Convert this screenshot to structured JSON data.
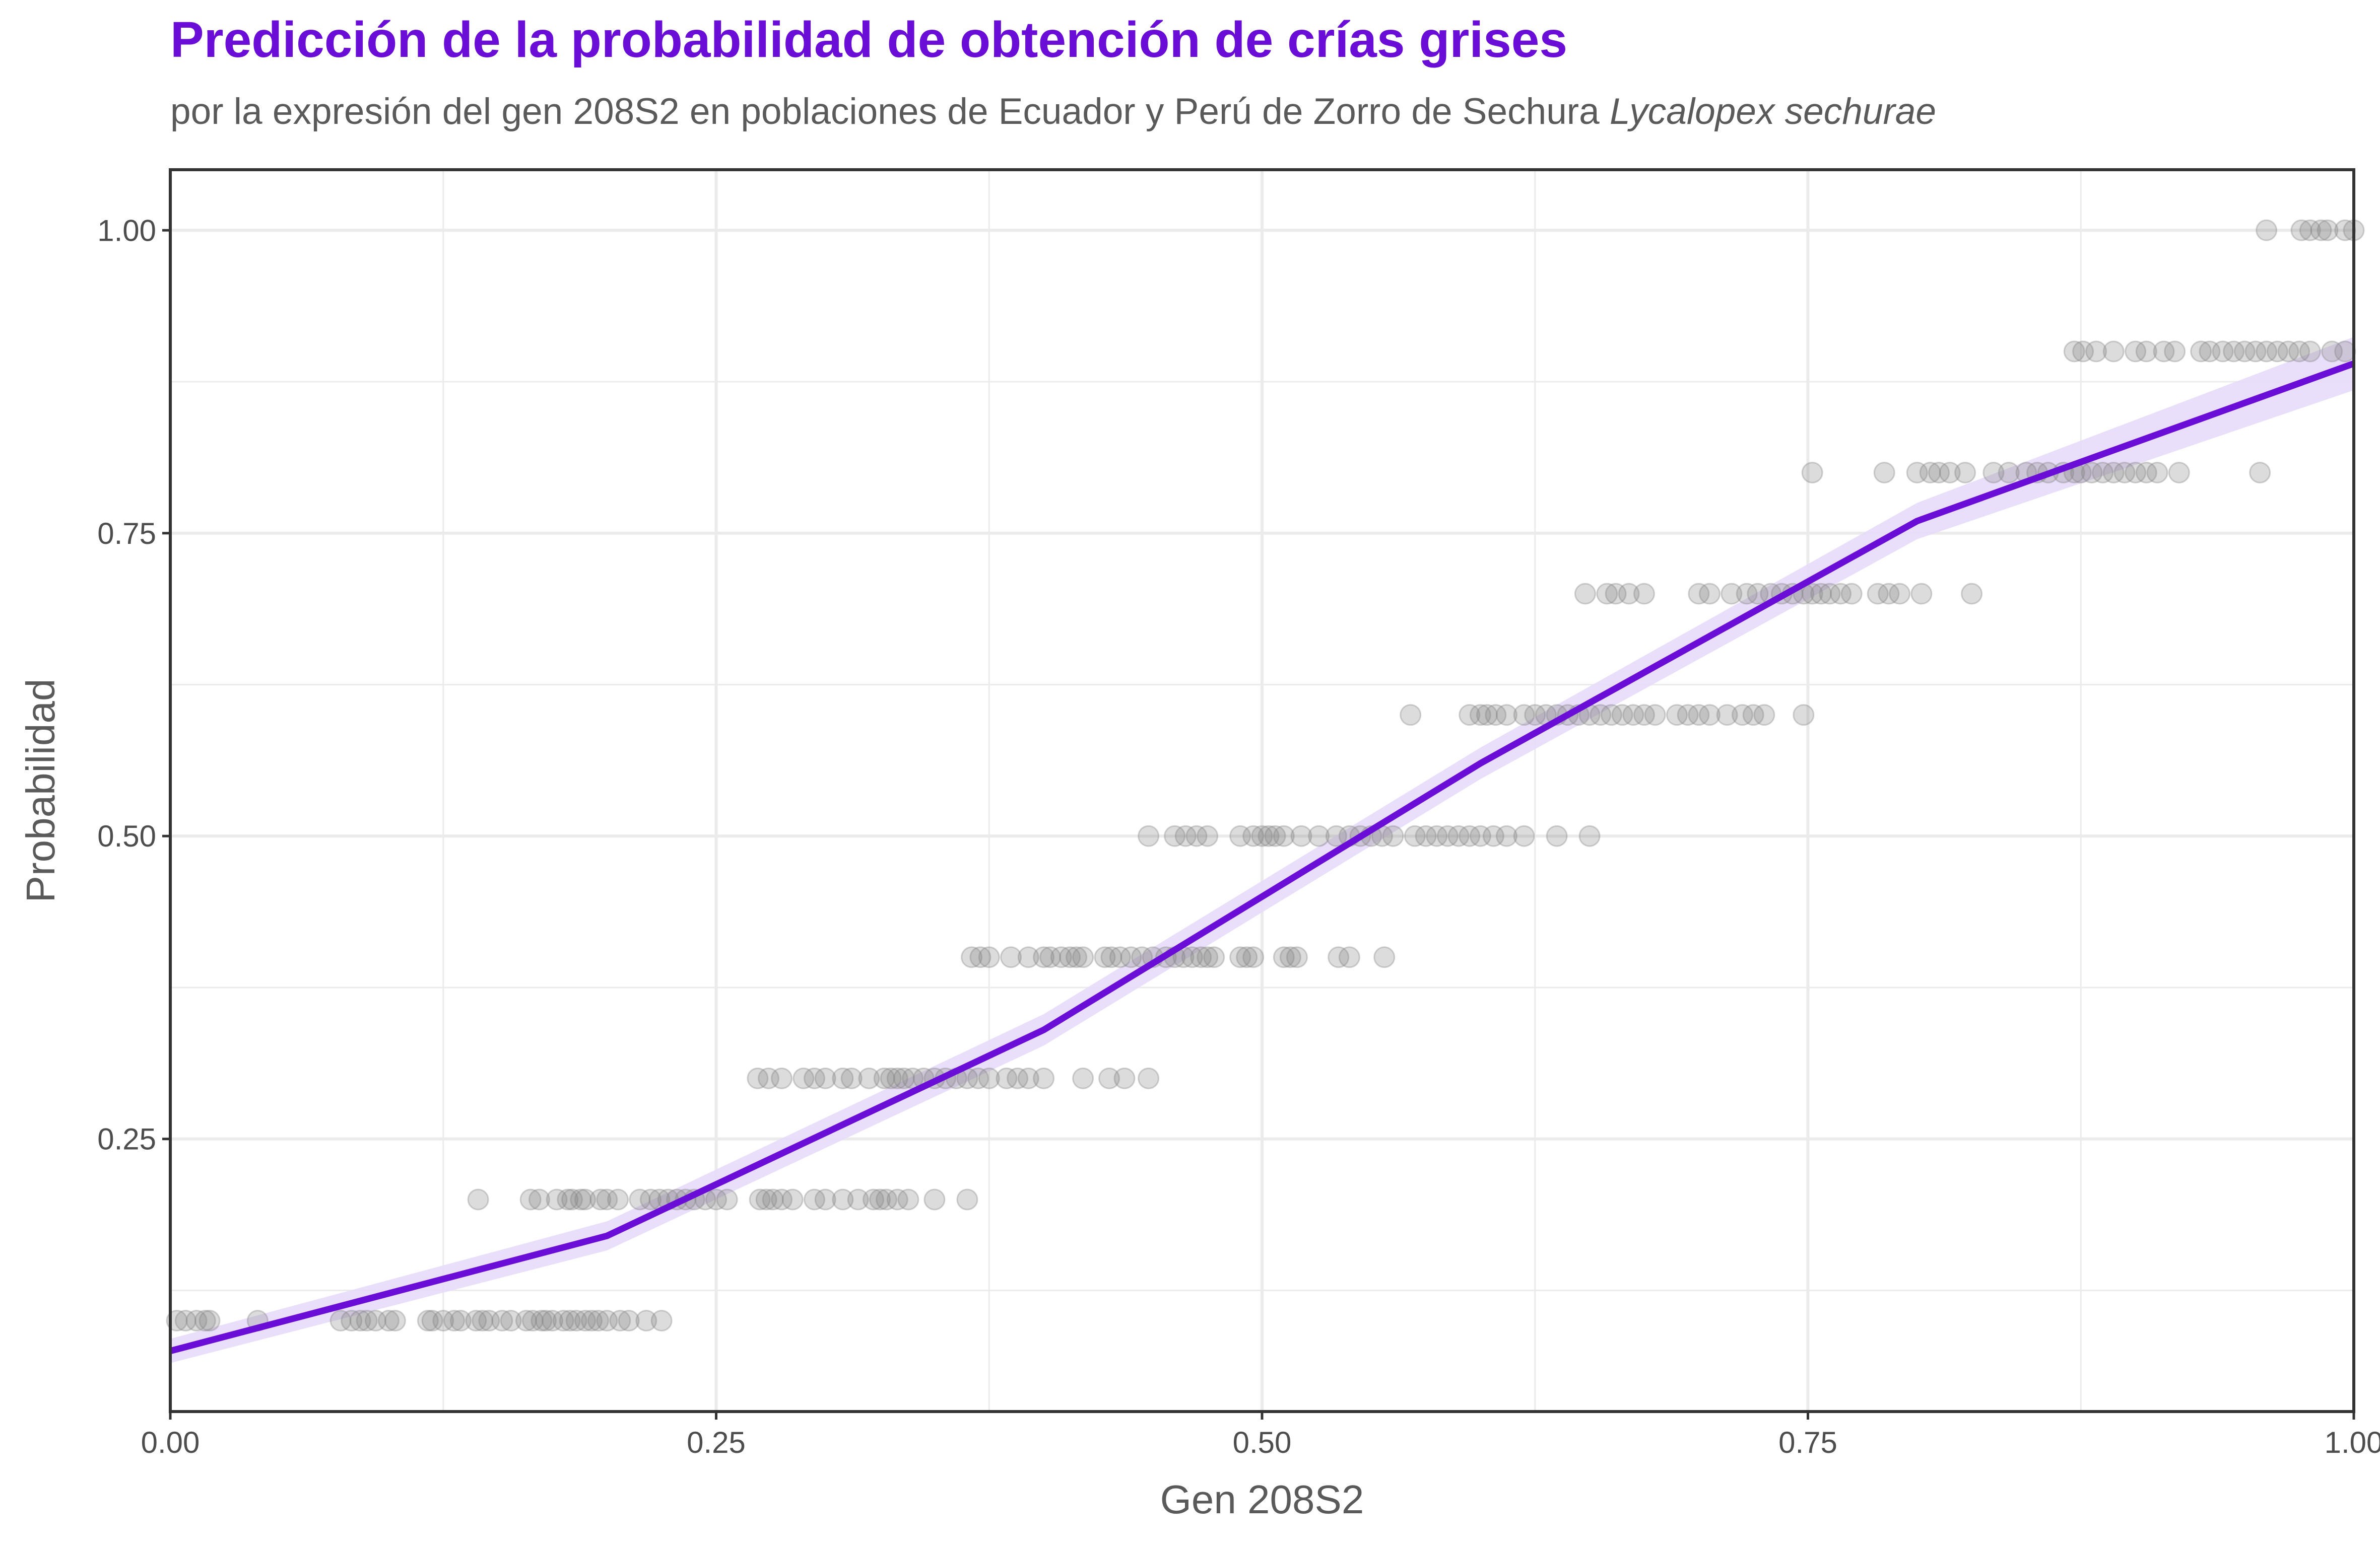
{
  "title": "Predicción de la probabilidad de obtención de crías grises",
  "subtitle_prefix": "por la expresión del gen 208S2 en poblaciones de Ecuador y Perú de Zorro de Sechura ",
  "subtitle_species": "Lycalopex sechurae",
  "colors": {
    "accent": "#6a0dd6",
    "ribbon": "#e8dcfa",
    "points": "#808080",
    "grid": "#ebebeb",
    "panel_border": "#333333"
  },
  "chart_data": {
    "type": "scatter",
    "title": "Predicción de la probabilidad de obtención de crías grises",
    "xlabel": "Gen 208S2",
    "ylabel": "Probabilidad",
    "xlim": [
      0,
      1
    ],
    "ylim": [
      0.025,
      1.05
    ],
    "grid": true,
    "x_ticks": [
      0.0,
      0.25,
      0.5,
      0.75,
      1.0
    ],
    "x_tick_labels": [
      "0.00",
      "0.25",
      "0.50",
      "0.75",
      "1.00"
    ],
    "y_ticks": [
      0.25,
      0.5,
      0.75,
      1.0
    ],
    "y_tick_labels": [
      "0.25",
      "0.50",
      "0.75",
      "1.00"
    ],
    "series": [
      {
        "kind": "points",
        "points_by_level": [
          {
            "y": 0.1,
            "x": [
              0.003,
              0.007,
              0.012,
              0.016,
              0.018,
              0.04,
              0.078,
              0.083,
              0.087,
              0.09,
              0.094,
              0.1,
              0.103,
              0.118,
              0.12,
              0.125,
              0.13,
              0.133,
              0.14,
              0.143,
              0.146,
              0.152,
              0.156,
              0.163,
              0.166,
              0.17,
              0.172,
              0.175,
              0.18,
              0.183,
              0.186,
              0.19,
              0.193,
              0.196,
              0.2,
              0.206,
              0.21,
              0.218,
              0.225
            ]
          },
          {
            "y": 0.2,
            "x": [
              0.141,
              0.165,
              0.169,
              0.177,
              0.182,
              0.184,
              0.188,
              0.19,
              0.197,
              0.2,
              0.205,
              0.215,
              0.22,
              0.224,
              0.228,
              0.232,
              0.236,
              0.24,
              0.245,
              0.25,
              0.255,
              0.27,
              0.273,
              0.276,
              0.28,
              0.285,
              0.295,
              0.3,
              0.308,
              0.315,
              0.322,
              0.325,
              0.328,
              0.333,
              0.338,
              0.35,
              0.365
            ]
          },
          {
            "y": 0.3,
            "x": [
              0.269,
              0.274,
              0.28,
              0.29,
              0.295,
              0.3,
              0.308,
              0.312,
              0.32,
              0.327,
              0.33,
              0.333,
              0.336,
              0.34,
              0.345,
              0.35,
              0.355,
              0.36,
              0.365,
              0.37,
              0.375,
              0.383,
              0.388,
              0.393,
              0.4,
              0.418,
              0.43,
              0.437,
              0.448
            ]
          },
          {
            "y": 0.4,
            "x": [
              0.367,
              0.371,
              0.375,
              0.385,
              0.393,
              0.4,
              0.403,
              0.408,
              0.412,
              0.415,
              0.418,
              0.428,
              0.431,
              0.435,
              0.44,
              0.445,
              0.45,
              0.456,
              0.46,
              0.464,
              0.468,
              0.472,
              0.475,
              0.478,
              0.49,
              0.493,
              0.496,
              0.51,
              0.513,
              0.516,
              0.535,
              0.54,
              0.556
            ]
          },
          {
            "y": 0.5,
            "x": [
              0.448,
              0.46,
              0.465,
              0.47,
              0.475,
              0.49,
              0.496,
              0.5,
              0.503,
              0.506,
              0.51,
              0.518,
              0.526,
              0.534,
              0.54,
              0.545,
              0.55,
              0.555,
              0.56,
              0.57,
              0.575,
              0.58,
              0.585,
              0.59,
              0.595,
              0.6,
              0.606,
              0.612,
              0.62,
              0.635,
              0.65
            ]
          },
          {
            "y": 0.6,
            "x": [
              0.568,
              0.595,
              0.6,
              0.603,
              0.607,
              0.612,
              0.62,
              0.625,
              0.63,
              0.635,
              0.64,
              0.645,
              0.65,
              0.655,
              0.66,
              0.665,
              0.67,
              0.675,
              0.68,
              0.69,
              0.695,
              0.7,
              0.705,
              0.713,
              0.72,
              0.725,
              0.73,
              0.748
            ]
          },
          {
            "y": 0.7,
            "x": [
              0.648,
              0.658,
              0.662,
              0.668,
              0.675,
              0.7,
              0.705,
              0.715,
              0.722,
              0.727,
              0.733,
              0.738,
              0.743,
              0.748,
              0.752,
              0.756,
              0.76,
              0.765,
              0.77,
              0.782,
              0.787,
              0.792,
              0.802,
              0.825
            ]
          },
          {
            "y": 0.8,
            "x": [
              0.752,
              0.785,
              0.8,
              0.806,
              0.81,
              0.815,
              0.822,
              0.835,
              0.842,
              0.85,
              0.855,
              0.86,
              0.867,
              0.872,
              0.875,
              0.88,
              0.885,
              0.89,
              0.895,
              0.9,
              0.905,
              0.91,
              0.92,
              0.957
            ]
          },
          {
            "y": 0.9,
            "x": [
              0.872,
              0.876,
              0.882,
              0.89,
              0.9,
              0.905,
              0.913,
              0.918,
              0.93,
              0.934,
              0.94,
              0.945,
              0.95,
              0.955,
              0.96,
              0.965,
              0.97,
              0.975,
              0.98,
              0.99,
              0.996
            ]
          },
          {
            "y": 1.0,
            "x": [
              0.96,
              0.976,
              0.98,
              0.985,
              0.988,
              0.996,
              1.0
            ]
          }
        ]
      },
      {
        "kind": "fit-line",
        "x": [
          0.0,
          0.2,
          0.4,
          0.6,
          0.8,
          1.0
        ],
        "y": [
          0.075,
          0.17,
          0.34,
          0.56,
          0.76,
          0.89
        ],
        "ci_half_width": [
          0.01,
          0.012,
          0.013,
          0.013,
          0.015,
          0.022
        ]
      }
    ]
  }
}
